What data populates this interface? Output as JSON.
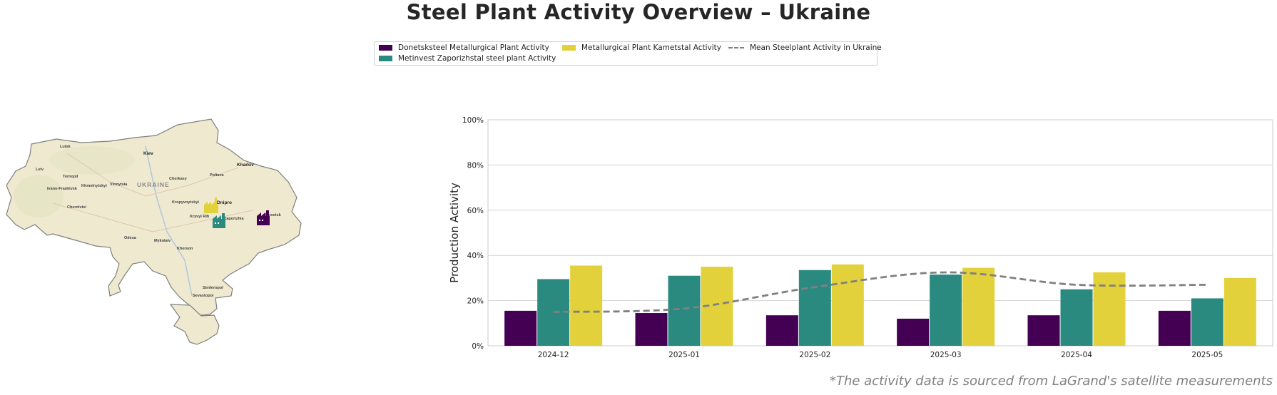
{
  "title": "Steel Plant Activity Overview – Ukraine",
  "footnote": "*The activity data is sourced from LaGrand's satellite measurements",
  "colors": {
    "donetsk": "#440154",
    "zaporizh": "#2a8a80",
    "kametstal": "#e2d13a",
    "mean": "#808080",
    "map_land": "#efe9cf",
    "map_border": "#7f7f7f"
  },
  "map": {
    "country_label": "UKRAINE",
    "cities": [
      "Lutsk",
      "Kiev",
      "Kharkiv",
      "Lviv",
      "Ternopil",
      "Khmelnytskyi",
      "Vinnytsia",
      "Cherkasy",
      "Poltava",
      "Ivano-Frankivsk",
      "Chernivtsi",
      "Kropyvnytskyi",
      "Dnipro",
      "Kryvyi Rih",
      "Zaporizhia",
      "Donetsk",
      "Mykolaiv",
      "Kherson",
      "Odesa",
      "Simferopol",
      "Sevastopol"
    ],
    "plant_icons": [
      "factory-icon-kametstal",
      "factory-icon-zaporizhstal",
      "factory-icon-donetsksteel"
    ]
  },
  "chart_data": {
    "type": "bar",
    "categories": [
      "2024-12",
      "2025-01",
      "2025-02",
      "2025-03",
      "2025-04",
      "2025-05"
    ],
    "series": [
      {
        "name": "Donetsksteel Metallurgical Plant Activity",
        "values": [
          15.5,
          14.5,
          13.5,
          12,
          13.5,
          15.5
        ]
      },
      {
        "name": "Metinvest Zaporizhstal steel plant Activity",
        "values": [
          29.5,
          31,
          33.5,
          31.5,
          25,
          21
        ]
      },
      {
        "name": "Metallurgical Plant Kametstal Activity",
        "values": [
          35.5,
          35,
          36,
          34.5,
          32.5,
          30
        ]
      }
    ],
    "line_series": {
      "name": "Mean Steelplant Activity in Ukraine",
      "style": "dashed",
      "values": [
        15,
        16.5,
        26,
        32.5,
        27,
        27
      ]
    },
    "ylabel": "Production Activity",
    "xlabel": "",
    "ylim": [
      0,
      100
    ],
    "yticks": [
      "0%",
      "20%",
      "40%",
      "60%",
      "80%",
      "100%"
    ],
    "grid": "horizontal",
    "legend_position": "top-center"
  }
}
